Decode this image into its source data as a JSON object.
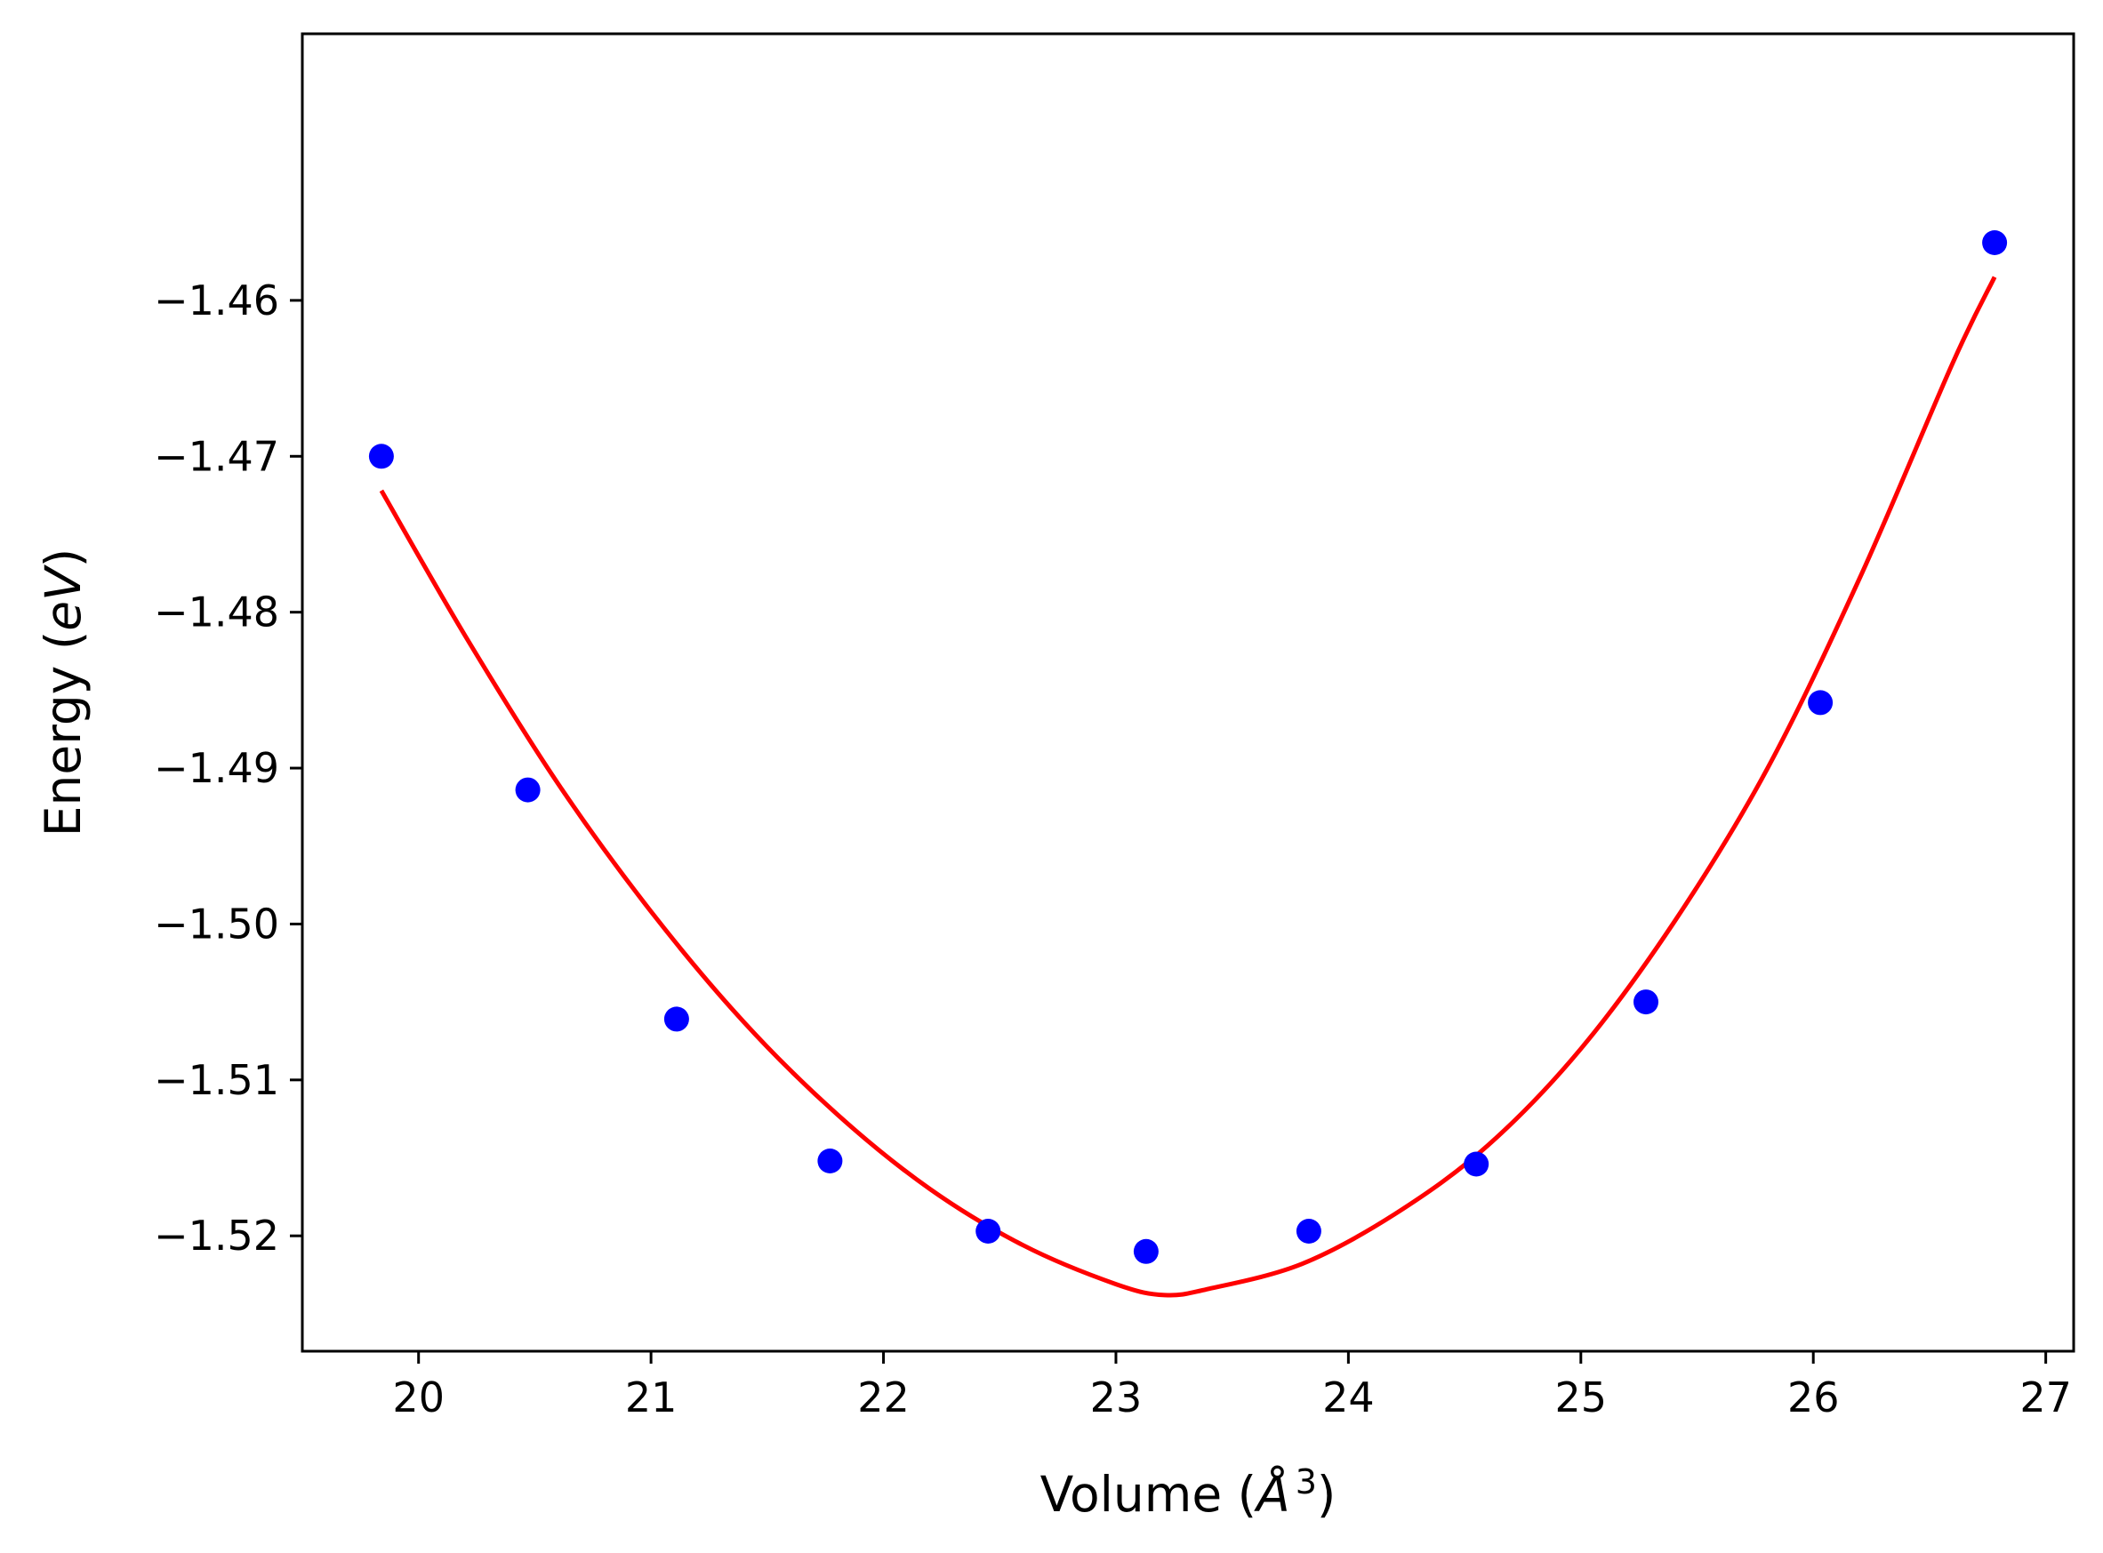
{
  "chart_data": {
    "type": "scatter",
    "title": "",
    "xlabel": {
      "prefix": "Volume (",
      "symbol": "Å",
      "exponent": "3",
      "suffix": ")"
    },
    "ylabel": {
      "prefix": "Energy (",
      "symbol": "eV",
      "suffix": ")"
    },
    "xlim": [
      19.5,
      27.12
    ],
    "ylim": [
      -1.5274,
      -1.4429
    ],
    "grid": false,
    "legend": "none",
    "xticks": [
      20,
      21,
      22,
      23,
      24,
      25,
      26,
      27
    ],
    "xtick_labels": [
      "20",
      "21",
      "22",
      "23",
      "24",
      "25",
      "26",
      "27"
    ],
    "yticks": [
      -1.46,
      -1.47,
      -1.48,
      -1.49,
      -1.5,
      -1.51,
      -1.52
    ],
    "ytick_labels": [
      "−1.46",
      "−1.47",
      "−1.48",
      "−1.49",
      "−1.50",
      "−1.51",
      "−1.52"
    ],
    "series": [
      {
        "kind": "scatter",
        "color": "#0000ff",
        "x": [
          19.84,
          20.47,
          21.11,
          21.77,
          22.45,
          23.13,
          23.83,
          24.55,
          25.28,
          26.03,
          26.78
        ],
        "y": [
          -1.47,
          -1.4914,
          -1.5061,
          -1.5152,
          -1.5197,
          -1.521,
          -1.5197,
          -1.5154,
          -1.505,
          -1.4858,
          -1.4563
        ]
      },
      {
        "kind": "line",
        "color": "#ff0000",
        "x": [
          19.84,
          20.2,
          20.6,
          21.0,
          21.4,
          21.8,
          22.2,
          22.6,
          23.0,
          23.21,
          23.4,
          23.8,
          24.2,
          24.6,
          25.0,
          25.4,
          25.8,
          26.2,
          26.6,
          26.78
        ],
        "y": [
          -1.4722,
          -1.4815,
          -1.491,
          -1.4992,
          -1.5063,
          -1.5122,
          -1.517,
          -1.5206,
          -1.5231,
          -1.5238,
          -1.5234,
          -1.5218,
          -1.5186,
          -1.5142,
          -1.508,
          -1.4999,
          -1.4901,
          -1.4778,
          -1.464,
          -1.4585
        ]
      }
    ]
  }
}
